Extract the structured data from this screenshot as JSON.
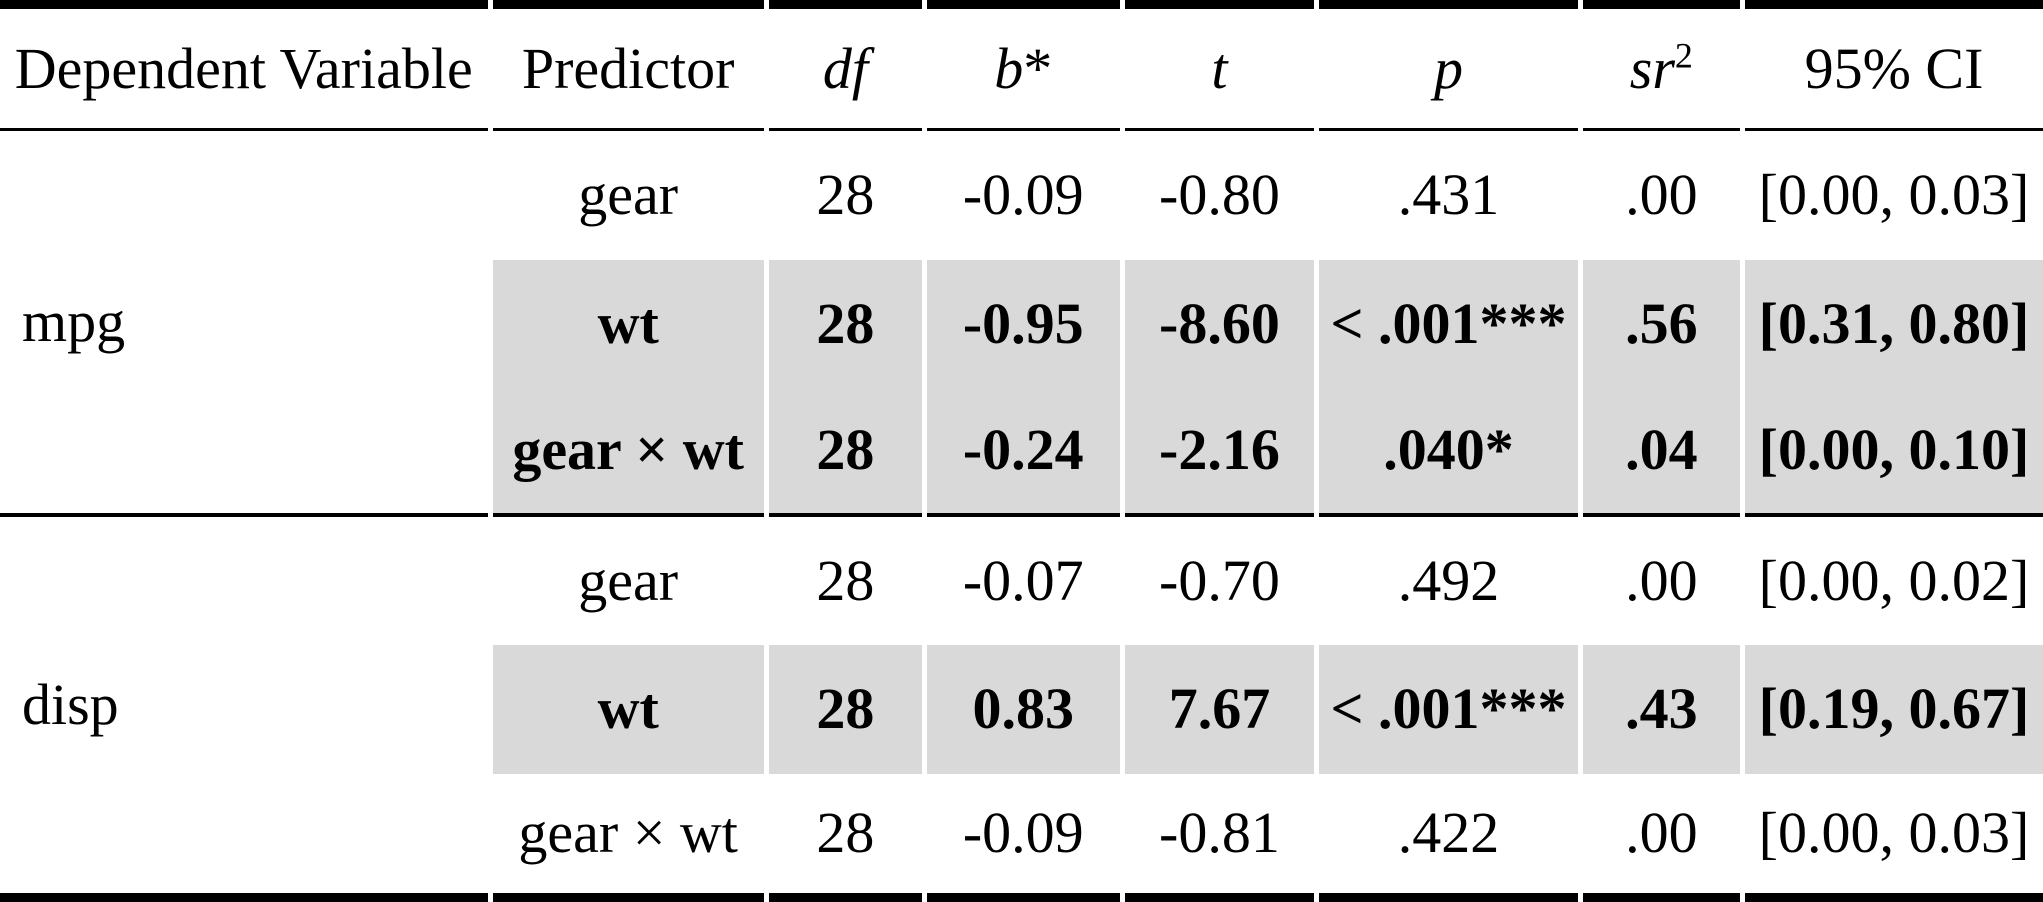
{
  "table": {
    "columns": [
      {
        "id": "dependent-variable",
        "label": "Dependent Variable",
        "italic": false,
        "suffix": "",
        "sup": ""
      },
      {
        "id": "predictor",
        "label": "Predictor",
        "italic": false,
        "suffix": "",
        "sup": ""
      },
      {
        "id": "df",
        "label": "df",
        "italic": true,
        "suffix": "",
        "sup": ""
      },
      {
        "id": "b-star",
        "label": "b",
        "italic": true,
        "suffix": "*",
        "sup": ""
      },
      {
        "id": "t",
        "label": "t",
        "italic": true,
        "suffix": "",
        "sup": ""
      },
      {
        "id": "p",
        "label": "p",
        "italic": true,
        "suffix": "",
        "sup": ""
      },
      {
        "id": "sr-squared",
        "label": "sr",
        "italic": true,
        "suffix": "",
        "sup": "2"
      },
      {
        "id": "ci-95",
        "label": "95% CI",
        "italic": false,
        "suffix": "",
        "sup": ""
      }
    ],
    "groups": [
      {
        "dependent_variable": "mpg",
        "rows": [
          {
            "predictor": "gear",
            "df": "28",
            "b_star": "-0.09",
            "t": "-0.80",
            "p": ".431",
            "sr2": ".00",
            "ci": "[0.00, 0.03]",
            "highlighted": false
          },
          {
            "predictor": "wt",
            "df": "28",
            "b_star": "-0.95",
            "t": "-8.60",
            "p": "< .001***",
            "sr2": ".56",
            "ci": "[0.31, 0.80]",
            "highlighted": true
          },
          {
            "predictor": "gear × wt",
            "df": "28",
            "b_star": "-0.24",
            "t": "-2.16",
            "p": ".040*",
            "sr2": ".04",
            "ci": "[0.00, 0.10]",
            "highlighted": true
          }
        ]
      },
      {
        "dependent_variable": "disp",
        "rows": [
          {
            "predictor": "gear",
            "df": "28",
            "b_star": "-0.07",
            "t": "-0.70",
            "p": ".492",
            "sr2": ".00",
            "ci": "[0.00, 0.02]",
            "highlighted": false
          },
          {
            "predictor": "wt",
            "df": "28",
            "b_star": "0.83",
            "t": "7.67",
            "p": "< .001***",
            "sr2": ".43",
            "ci": "[0.19, 0.67]",
            "highlighted": true
          },
          {
            "predictor": "gear × wt",
            "df": "28",
            "b_star": "-0.09",
            "t": "-0.81",
            "p": ".422",
            "sr2": ".00",
            "ci": "[0.00, 0.03]",
            "highlighted": false
          }
        ]
      }
    ],
    "colors": {
      "highlight": "#d9d9d9",
      "rule": "#000000",
      "background": "#ffffff",
      "text": "#000000"
    }
  }
}
